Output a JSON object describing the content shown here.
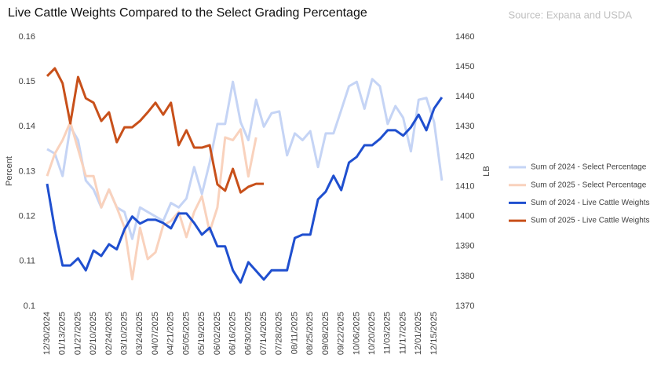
{
  "chart_data": {
    "type": "line",
    "title": "Live Cattle Weights Compared to the Select Grading Percentage",
    "source": "Source: Expana and USDA",
    "y_label": "Percent",
    "y2_label": "LB",
    "categories": [
      "12/30/2024",
      null,
      "01/13/2025",
      null,
      "01/27/2025",
      null,
      "02/10/2025",
      null,
      "02/24/2025",
      null,
      "03/10/2025",
      null,
      "03/24/2025",
      null,
      "04/07/2025",
      null,
      "04/21/2025",
      null,
      "05/05/2025",
      null,
      "05/19/2025",
      null,
      "06/02/2025",
      null,
      "06/16/2025",
      null,
      "06/30/2025",
      null,
      "07/14/2025",
      null,
      "07/28/2025",
      null,
      "08/11/2025",
      null,
      "08/25/2025",
      null,
      "09/08/2025",
      null,
      "09/22/2025",
      null,
      "10/06/2025",
      null,
      "10/20/2025",
      null,
      "11/03/2025",
      null,
      "11/17/2025",
      null,
      "12/01/2025",
      null,
      "12/15/2025",
      null
    ],
    "ylim": [
      0.1,
      0.16
    ],
    "yticks": [
      0.1,
      0.11,
      0.12,
      0.13,
      0.14,
      0.15,
      0.16
    ],
    "y2lim": [
      1370,
      1460
    ],
    "y2ticks": [
      1370,
      1380,
      1390,
      1400,
      1410,
      1420,
      1430,
      1440,
      1450,
      1460
    ],
    "legend": "right",
    "grid": false,
    "series": [
      {
        "name": "Sum of 2024 - Select Percentage",
        "color": "#c5d4f5",
        "values": [
          0.135,
          0.134,
          0.129,
          0.14,
          0.137,
          0.128,
          0.126,
          0.122,
          0.126,
          0.122,
          0.121,
          0.115,
          0.122,
          0.121,
          0.12,
          0.119,
          0.123,
          0.122,
          0.124,
          0.131,
          0.125,
          0.132,
          0.1406,
          0.1406,
          0.15,
          0.141,
          0.137,
          0.146,
          0.14,
          0.143,
          0.1434,
          0.1336,
          0.1385,
          0.137,
          0.139,
          0.131,
          0.1385,
          0.1385,
          0.1437,
          0.149,
          0.15,
          0.144,
          0.1506,
          0.149,
          0.1406,
          0.1446,
          0.142,
          0.1345,
          0.146,
          0.1464,
          0.141,
          0.128
        ]
      },
      {
        "name": "Sum of 2025 - Select Percentage",
        "color": "#f9d2bd",
        "values": [
          0.129,
          0.134,
          0.137,
          0.141,
          0.135,
          0.129,
          0.129,
          0.122,
          0.126,
          0.122,
          0.1175,
          0.106,
          0.1175,
          0.1105,
          0.112,
          0.118,
          0.119,
          0.121,
          0.1154,
          0.121,
          0.1245,
          0.1166,
          0.122,
          0.1376,
          0.137,
          0.1394,
          0.1289,
          0.1376,
          null,
          null,
          null,
          null,
          null,
          null,
          null,
          null,
          null,
          null,
          null,
          null,
          null,
          null,
          null,
          null,
          null,
          null,
          null,
          null,
          null,
          null,
          null,
          null
        ]
      },
      {
        "name": "Sum of 2024 - Live Cattle Weights",
        "color": "#1f4fcf",
        "axis": "y2",
        "values": [
          1410.9,
          1395.7,
          1383.6,
          1383.6,
          1386,
          1382,
          1388.6,
          1386.8,
          1390.7,
          1389,
          1395.7,
          1400,
          1397.6,
          1398.9,
          1398.9,
          1397.8,
          1396,
          1401,
          1401,
          1397.8,
          1393.9,
          1396.2,
          1390,
          1390,
          1382,
          1377.9,
          1384.7,
          1381.8,
          1378.9,
          1382,
          1382,
          1382,
          1392.8,
          1393.9,
          1393.9,
          1405.7,
          1408.3,
          1413.6,
          1408.8,
          1418,
          1419.9,
          1423.8,
          1423.8,
          1425.9,
          1428.8,
          1428.8,
          1427,
          1429.8,
          1434,
          1428.8,
          1436.1,
          1439.8
        ]
      },
      {
        "name": "Sum of 2025 - Live Cattle Weights",
        "color": "#c8501a",
        "axis": "y2",
        "values": [
          1446.9,
          1449.5,
          1444.5,
          1431.1,
          1446.6,
          1439.5,
          1438,
          1431.9,
          1434.8,
          1424.8,
          1429.8,
          1429.8,
          1431.9,
          1434.8,
          1438,
          1434,
          1438,
          1423.8,
          1428.8,
          1423,
          1423,
          1423.8,
          1410.7,
          1408.6,
          1415.9,
          1408,
          1409.9,
          1410.9,
          1410.9,
          null,
          null,
          null,
          null,
          null,
          null,
          null,
          null,
          null,
          null,
          null,
          null,
          null,
          null,
          null,
          null,
          null,
          null,
          null,
          null,
          null,
          null,
          null
        ]
      }
    ]
  }
}
